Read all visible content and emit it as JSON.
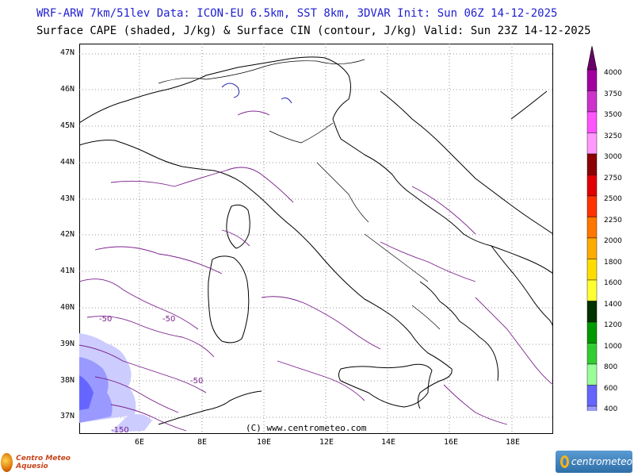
{
  "header": {
    "line1": "WRF-ARW 7km/51lev  Data: ICON-EU 6.5km, SST 8km, 3DVAR  Init: Sun 06Z 14-12-2025",
    "line2": "Surface CAPE (shaded, J/kg) & Surface CIN (contour, J/kg)  Valid: Sun 23Z 14-12-2025"
  },
  "axes": {
    "lat_labels": [
      "47N",
      "46N",
      "45N",
      "44N",
      "43N",
      "42N",
      "41N",
      "40N",
      "39N",
      "38N",
      "37N"
    ],
    "lon_labels": [
      "6E",
      "8E",
      "10E",
      "12E",
      "14E",
      "16E",
      "18E"
    ]
  },
  "cin_labels": [
    "-50",
    "-50",
    "-50",
    "-150"
  ],
  "credit": "(C) www.centrometeo.com",
  "colorbar": {
    "levels": [
      "4000",
      "3750",
      "3500",
      "3250",
      "3000",
      "2750",
      "2500",
      "2250",
      "2000",
      "1800",
      "1600",
      "1400",
      "1200",
      "1000",
      "800",
      "600",
      "400"
    ],
    "colors": [
      "#a000a0",
      "#cc33cc",
      "#ff55ff",
      "#ff99ff",
      "#8b0000",
      "#e00000",
      "#ff3300",
      "#ff7700",
      "#ffaa00",
      "#ffdd00",
      "#ffff33",
      "#003300",
      "#009900",
      "#33cc33",
      "#99ff99",
      "#6666ff",
      "#9999ff",
      "#ccccff"
    ]
  },
  "logos": {
    "left_text": "Centro Meteo Aquesio",
    "right_text": "centrometeo"
  }
}
